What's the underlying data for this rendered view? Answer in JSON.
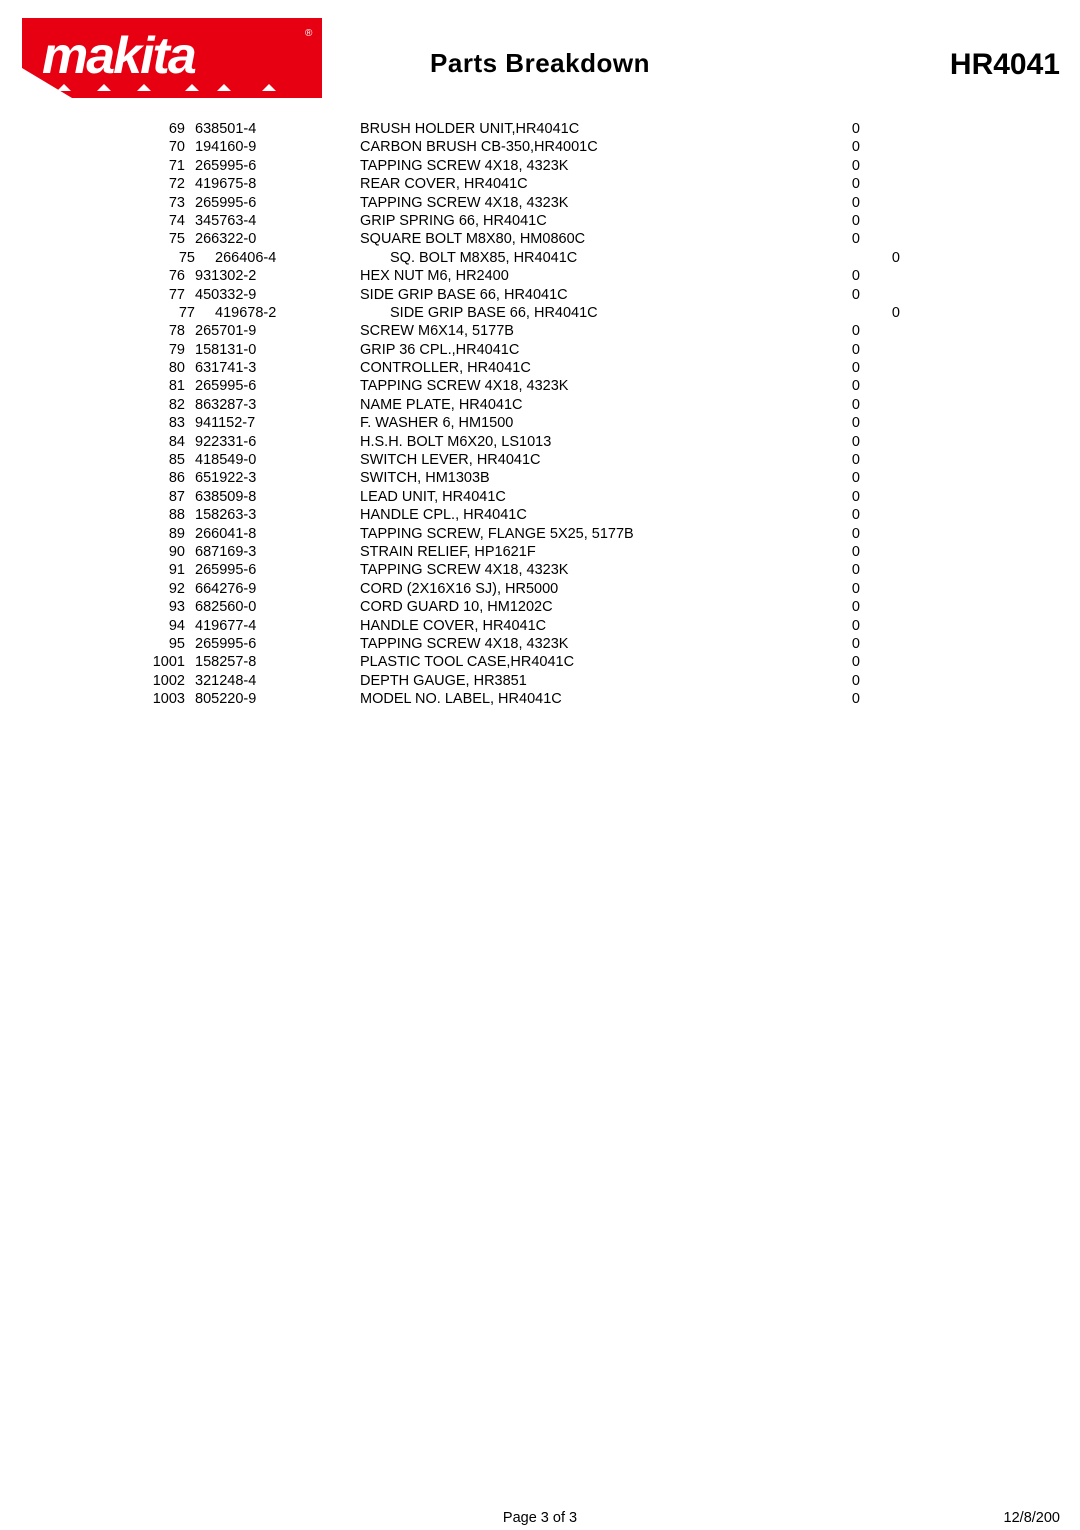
{
  "header": {
    "title": "Parts Breakdown",
    "model": "HR4041",
    "title_fontsize": 26,
    "model_fontsize": 30,
    "logo_color": "#e60012"
  },
  "table": {
    "font_size": 14.5,
    "row_height": 18.4,
    "columns": [
      "idx",
      "part",
      "desc",
      "qty"
    ],
    "rows": [
      {
        "idx": "69",
        "part": "638501-4",
        "desc": "BRUSH HOLDER UNIT,HR4041C",
        "qty": "0",
        "indent": 0
      },
      {
        "idx": "70",
        "part": "194160-9",
        "desc": "CARBON BRUSH CB-350,HR4001C",
        "qty": "0",
        "indent": 0
      },
      {
        "idx": "71",
        "part": "265995-6",
        "desc": "TAPPING SCREW 4X18, 4323K",
        "qty": "0",
        "indent": 0
      },
      {
        "idx": "72",
        "part": "419675-8",
        "desc": "REAR COVER, HR4041C",
        "qty": "0",
        "indent": 0
      },
      {
        "idx": "73",
        "part": "265995-6",
        "desc": "TAPPING SCREW 4X18, 4323K",
        "qty": "0",
        "indent": 0
      },
      {
        "idx": "74",
        "part": "345763-4",
        "desc": "GRIP SPRING 66, HR4041C",
        "qty": "0",
        "indent": 0
      },
      {
        "idx": "75",
        "part": "266322-0",
        "desc": "SQUARE BOLT M8X80, HM0860C",
        "qty": "0",
        "indent": 0
      },
      {
        "idx": "75",
        "part": "266406-4",
        "desc": "SQ. BOLT M8X85, HR4041C",
        "qty": "0",
        "indent": 1
      },
      {
        "idx": "76",
        "part": "931302-2",
        "desc": "HEX NUT M6, HR2400",
        "qty": "0",
        "indent": 0
      },
      {
        "idx": "77",
        "part": "450332-9",
        "desc": "SIDE GRIP BASE 66, HR4041C",
        "qty": "0",
        "indent": 0
      },
      {
        "idx": "77",
        "part": "419678-2",
        "desc": "SIDE GRIP BASE 66, HR4041C",
        "qty": "0",
        "indent": 1
      },
      {
        "idx": "78",
        "part": "265701-9",
        "desc": "SCREW M6X14, 5177B",
        "qty": "0",
        "indent": 0
      },
      {
        "idx": "79",
        "part": "158131-0",
        "desc": "GRIP 36 CPL.,HR4041C",
        "qty": "0",
        "indent": 0
      },
      {
        "idx": "80",
        "part": "631741-3",
        "desc": "CONTROLLER, HR4041C",
        "qty": "0",
        "indent": 0
      },
      {
        "idx": "81",
        "part": "265995-6",
        "desc": "TAPPING SCREW 4X18, 4323K",
        "qty": "0",
        "indent": 0
      },
      {
        "idx": "82",
        "part": "863287-3",
        "desc": "NAME PLATE, HR4041C",
        "qty": "0",
        "indent": 0
      },
      {
        "idx": "83",
        "part": "941152-7",
        "desc": "F. WASHER 6, HM1500",
        "qty": "0",
        "indent": 0
      },
      {
        "idx": "84",
        "part": "922331-6",
        "desc": "H.S.H. BOLT M6X20, LS1013",
        "qty": "0",
        "indent": 0
      },
      {
        "idx": "85",
        "part": "418549-0",
        "desc": "SWITCH LEVER, HR4041C",
        "qty": "0",
        "indent": 0
      },
      {
        "idx": "86",
        "part": "651922-3",
        "desc": "SWITCH, HM1303B",
        "qty": "0",
        "indent": 0
      },
      {
        "idx": "87",
        "part": "638509-8",
        "desc": "LEAD UNIT, HR4041C",
        "qty": "0",
        "indent": 0
      },
      {
        "idx": "88",
        "part": "158263-3",
        "desc": "HANDLE CPL., HR4041C",
        "qty": "0",
        "indent": 0
      },
      {
        "idx": "89",
        "part": "266041-8",
        "desc": "TAPPING SCREW, FLANGE 5X25, 5177B",
        "qty": "0",
        "indent": 0
      },
      {
        "idx": "90",
        "part": "687169-3",
        "desc": "STRAIN RELIEF, HP1621F",
        "qty": "0",
        "indent": 0
      },
      {
        "idx": "91",
        "part": "265995-6",
        "desc": "TAPPING SCREW 4X18, 4323K",
        "qty": "0",
        "indent": 0
      },
      {
        "idx": "92",
        "part": "664276-9",
        "desc": "CORD (2X16X16 SJ), HR5000",
        "qty": "0",
        "indent": 0
      },
      {
        "idx": "93",
        "part": "682560-0",
        "desc": "CORD GUARD 10, HM1202C",
        "qty": "0",
        "indent": 0
      },
      {
        "idx": "94",
        "part": "419677-4",
        "desc": "HANDLE COVER, HR4041C",
        "qty": "0",
        "indent": 0
      },
      {
        "idx": "95",
        "part": "265995-6",
        "desc": "TAPPING SCREW 4X18, 4323K",
        "qty": "0",
        "indent": 0
      },
      {
        "idx": "1001",
        "part": "158257-8",
        "desc": "PLASTIC TOOL CASE,HR4041C",
        "qty": "0",
        "indent": 0
      },
      {
        "idx": "1002",
        "part": "321248-4",
        "desc": "DEPTH GAUGE, HR3851",
        "qty": "0",
        "indent": 0
      },
      {
        "idx": "1003",
        "part": "805220-9",
        "desc": "MODEL NO. LABEL, HR4041C",
        "qty": "0",
        "indent": 0
      }
    ]
  },
  "footer": {
    "page": "Page 3 of 3",
    "date": "12/8/200"
  },
  "colors": {
    "background": "#ffffff",
    "text": "#000000",
    "logo": "#e60012"
  }
}
